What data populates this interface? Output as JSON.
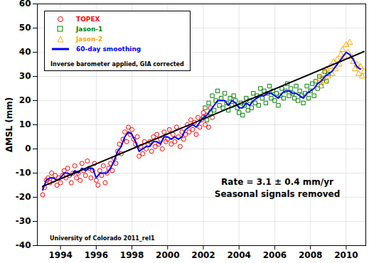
{
  "chart_data": {
    "type": "scatter",
    "y_label": "ΔMSL (mm)",
    "annotations": [
      "Inverse barometer applied, GIA corrected",
      "Rate = 3.1 ± 0.4 mm/yr",
      "Seasonal signals removed",
      "University of Colorado 2011_rel1"
    ],
    "xlim": [
      1992.7,
      2011.1
    ],
    "xticks": [
      1994,
      1996,
      1998,
      2000,
      2002,
      2004,
      2006,
      2008,
      2010
    ],
    "ylim": [
      -40,
      60
    ],
    "yticks": [
      -40,
      -30,
      -20,
      -10,
      0,
      10,
      20,
      30,
      40,
      50,
      60
    ],
    "grid": true,
    "legend": "top-left",
    "series": [
      {
        "name": "TOPEX",
        "type": "scatter",
        "marker": "circle",
        "color": "#ff0000",
        "x": [
          1993.0,
          1993.1,
          1993.2,
          1993.3,
          1993.4,
          1993.5,
          1993.6,
          1993.7,
          1993.8,
          1993.9,
          1994.0,
          1994.1,
          1994.2,
          1994.3,
          1994.4,
          1994.5,
          1994.6,
          1994.7,
          1994.8,
          1994.9,
          1995.0,
          1995.1,
          1995.2,
          1995.3,
          1995.4,
          1995.5,
          1995.6,
          1995.7,
          1995.8,
          1995.9,
          1996.0,
          1996.1,
          1996.2,
          1996.3,
          1996.4,
          1996.5,
          1996.6,
          1996.7,
          1996.8,
          1996.9,
          1997.0,
          1997.1,
          1997.2,
          1997.3,
          1997.4,
          1997.5,
          1997.6,
          1997.7,
          1997.8,
          1997.9,
          1998.0,
          1998.1,
          1998.2,
          1998.3,
          1998.4,
          1998.5,
          1998.6,
          1998.7,
          1998.8,
          1998.9,
          1999.0,
          1999.1,
          1999.2,
          1999.3,
          1999.4,
          1999.5,
          1999.6,
          1999.7,
          1999.8,
          1999.9,
          2000.0,
          2000.1,
          2000.2,
          2000.3,
          2000.4,
          2000.5,
          2000.6,
          2000.7,
          2000.8,
          2000.9,
          2001.0,
          2001.1,
          2001.2,
          2001.3,
          2001.4,
          2001.5,
          2001.6,
          2001.7,
          2001.8,
          2001.9,
          2002.0,
          2002.1,
          2002.2,
          2002.3,
          2002.4,
          2002.5
        ],
        "values": [
          -19,
          -16,
          -13,
          -12,
          -14,
          -10,
          -13,
          -11,
          -15,
          -12,
          -14,
          -11,
          -9,
          -12,
          -8,
          -11,
          -14,
          -10,
          -7,
          -12,
          -10,
          -13,
          -6,
          -9,
          -11,
          -5,
          -8,
          -12,
          -9,
          -6,
          -13,
          -15,
          -9,
          -11,
          -7,
          -14,
          -10,
          -8,
          -6,
          -9,
          -4,
          -6,
          -1,
          2,
          -2,
          4,
          7,
          3,
          9,
          6,
          8,
          4,
          2,
          5,
          -3,
          1,
          -2,
          3,
          0,
          2,
          3,
          -1,
          5,
          1,
          6,
          2,
          4,
          0,
          7,
          3,
          4,
          8,
          2,
          6,
          3,
          9,
          5,
          1,
          7,
          4,
          6,
          10,
          7,
          12,
          8,
          11,
          6,
          13,
          9,
          12,
          15,
          10,
          14,
          9,
          17,
          13
        ]
      },
      {
        "name": "Jason-1",
        "type": "scatter",
        "marker": "square",
        "color": "#008000",
        "x": [
          2002.0,
          2002.1,
          2002.2,
          2002.3,
          2002.4,
          2002.5,
          2002.6,
          2002.7,
          2002.8,
          2002.9,
          2003.0,
          2003.1,
          2003.2,
          2003.3,
          2003.4,
          2003.5,
          2003.6,
          2003.7,
          2003.8,
          2003.9,
          2004.0,
          2004.1,
          2004.2,
          2004.3,
          2004.4,
          2004.5,
          2004.6,
          2004.7,
          2004.8,
          2004.9,
          2005.0,
          2005.1,
          2005.2,
          2005.3,
          2005.4,
          2005.5,
          2005.6,
          2005.7,
          2005.8,
          2005.9,
          2006.0,
          2006.1,
          2006.2,
          2006.3,
          2006.4,
          2006.5,
          2006.6,
          2006.7,
          2006.8,
          2006.9,
          2007.0,
          2007.1,
          2007.2,
          2007.3,
          2007.4,
          2007.5,
          2007.6,
          2007.7,
          2007.8,
          2007.9,
          2008.0,
          2008.1,
          2008.2,
          2008.3,
          2008.4,
          2008.5,
          2008.6,
          2008.7,
          2008.8,
          2008.9,
          2009.0
        ],
        "values": [
          13,
          17,
          12,
          19,
          15,
          22,
          16,
          20,
          24,
          18,
          21,
          17,
          23,
          19,
          16,
          21,
          18,
          22,
          20,
          17,
          15,
          19,
          14,
          18,
          21,
          16,
          20,
          17,
          23,
          19,
          22,
          18,
          25,
          21,
          24,
          19,
          23,
          26,
          21,
          24,
          20,
          23,
          18,
          22,
          25,
          21,
          24,
          27,
          22,
          25,
          23,
          21,
          26,
          20,
          24,
          22,
          19,
          23,
          26,
          21,
          24,
          27,
          22,
          28,
          25,
          30,
          26,
          29,
          32,
          28,
          31
        ]
      },
      {
        "name": "Jason-2",
        "type": "scatter",
        "marker": "triangle",
        "color": "#ffa500",
        "x": [
          2008.5,
          2008.6,
          2008.7,
          2008.8,
          2008.9,
          2009.0,
          2009.1,
          2009.2,
          2009.3,
          2009.4,
          2009.5,
          2009.6,
          2009.7,
          2009.8,
          2009.9,
          2010.0,
          2010.1,
          2010.2,
          2010.3,
          2010.4,
          2010.5,
          2010.6,
          2010.7,
          2010.8,
          2010.9,
          2011.0
        ],
        "values": [
          29,
          26,
          31,
          28,
          33,
          30,
          34,
          31,
          36,
          33,
          37,
          35,
          39,
          41,
          38,
          43,
          40,
          44,
          38,
          36,
          33,
          35,
          31,
          34,
          30,
          32
        ]
      },
      {
        "name": "60-day smoothing",
        "type": "line",
        "line_style": "solid",
        "color": "#0000ff",
        "x": [
          1993.0,
          1993.2,
          1993.4,
          1993.6,
          1993.8,
          1994.0,
          1994.2,
          1994.4,
          1994.6,
          1994.8,
          1995.0,
          1995.2,
          1995.4,
          1995.6,
          1995.8,
          1996.0,
          1996.2,
          1996.4,
          1996.6,
          1996.8,
          1997.0,
          1997.2,
          1997.4,
          1997.6,
          1997.8,
          1998.0,
          1998.2,
          1998.4,
          1998.6,
          1998.8,
          1999.0,
          1999.2,
          1999.4,
          1999.6,
          1999.8,
          2000.0,
          2000.2,
          2000.4,
          2000.6,
          2000.8,
          2001.0,
          2001.2,
          2001.4,
          2001.6,
          2001.8,
          2002.0,
          2002.2,
          2002.4,
          2002.6,
          2002.8,
          2003.0,
          2003.2,
          2003.4,
          2003.6,
          2003.8,
          2004.0,
          2004.2,
          2004.4,
          2004.6,
          2004.8,
          2005.0,
          2005.2,
          2005.4,
          2005.6,
          2005.8,
          2006.0,
          2006.2,
          2006.4,
          2006.6,
          2006.8,
          2007.0,
          2007.2,
          2007.4,
          2007.6,
          2007.8,
          2008.0,
          2008.2,
          2008.4,
          2008.6,
          2008.8,
          2009.0,
          2009.2,
          2009.4,
          2009.6,
          2009.8,
          2010.0,
          2010.2,
          2010.4,
          2010.6,
          2010.8
        ],
        "values": [
          -17,
          -13,
          -12,
          -12,
          -13,
          -12,
          -10,
          -10,
          -11,
          -9,
          -10,
          -8,
          -9,
          -8,
          -8,
          -12,
          -10,
          -10,
          -10,
          -8,
          -5,
          -1,
          1,
          5,
          7,
          6,
          3,
          -1,
          0,
          1,
          1,
          3,
          3,
          2,
          5,
          5,
          4,
          5,
          4,
          5,
          8,
          9,
          10,
          9,
          11,
          13,
          14,
          16,
          18,
          20,
          20,
          20,
          18,
          20,
          19,
          17,
          17,
          19,
          18,
          20,
          21,
          22,
          22,
          23,
          23,
          22,
          21,
          23,
          24,
          24,
          23,
          23,
          22,
          21,
          23,
          24,
          25,
          27,
          28,
          30,
          31,
          32,
          34,
          36,
          38,
          40,
          39,
          37,
          34,
          33
        ]
      },
      {
        "type": "line",
        "line_style": "solid",
        "color": "#000000",
        "x": [
          1993.0,
          2011.0
        ],
        "values": [
          -15.5,
          40.3
        ]
      }
    ]
  }
}
